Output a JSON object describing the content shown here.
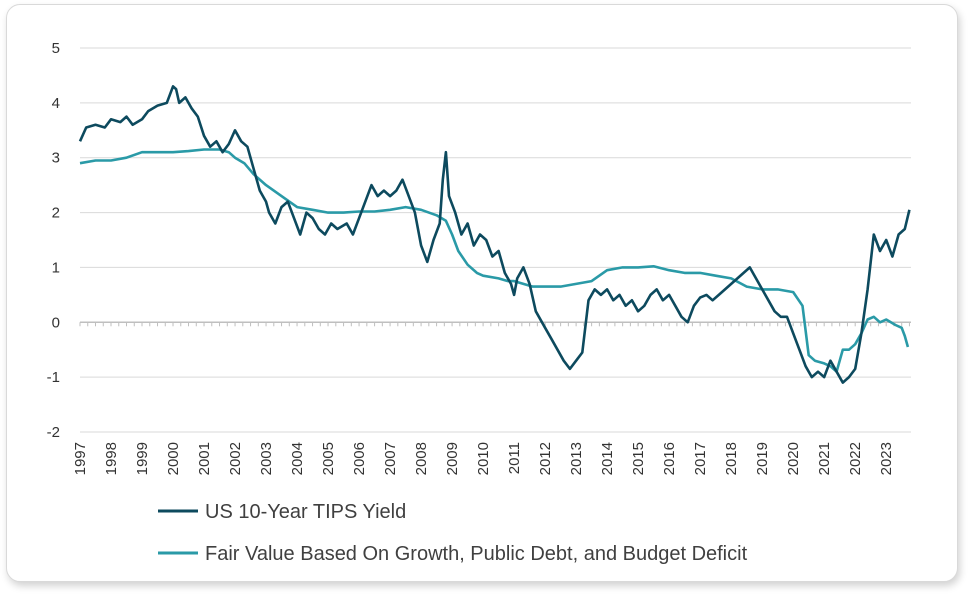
{
  "chart_data": {
    "type": "line",
    "title": "",
    "xlabel": "",
    "ylabel": "",
    "xlim": [
      1997,
      2023.8
    ],
    "ylim": [
      -2,
      5
    ],
    "y_ticks": [
      "5",
      "4",
      "3",
      "2",
      "1",
      "0",
      "-1",
      "-2"
    ],
    "x_ticks": [
      "1997",
      "1998",
      "1999",
      "2000",
      "2001",
      "2002",
      "2003",
      "2004",
      "2005",
      "2006",
      "2007",
      "2008",
      "2009",
      "2010",
      "2011",
      "2012",
      "2013",
      "2014",
      "2015",
      "2016",
      "2017",
      "2018",
      "2019",
      "2020",
      "2021",
      "2022",
      "2023"
    ],
    "grid": "horizontal",
    "legend_position": "bottom-left",
    "series": [
      {
        "name": "US 10-Year TIPS Yield",
        "color": "#0d4a5e",
        "points": [
          [
            1997.0,
            3.3
          ],
          [
            1997.2,
            3.55
          ],
          [
            1997.5,
            3.6
          ],
          [
            1997.8,
            3.55
          ],
          [
            1998.0,
            3.7
          ],
          [
            1998.3,
            3.65
          ],
          [
            1998.5,
            3.75
          ],
          [
            1998.7,
            3.6
          ],
          [
            1999.0,
            3.7
          ],
          [
            1999.2,
            3.85
          ],
          [
            1999.5,
            3.95
          ],
          [
            1999.8,
            4.0
          ],
          [
            2000.0,
            4.3
          ],
          [
            2000.1,
            4.25
          ],
          [
            2000.2,
            4.0
          ],
          [
            2000.4,
            4.1
          ],
          [
            2000.6,
            3.9
          ],
          [
            2000.8,
            3.75
          ],
          [
            2001.0,
            3.4
          ],
          [
            2001.2,
            3.2
          ],
          [
            2001.4,
            3.3
          ],
          [
            2001.6,
            3.1
          ],
          [
            2001.8,
            3.25
          ],
          [
            2002.0,
            3.5
          ],
          [
            2002.2,
            3.3
          ],
          [
            2002.4,
            3.2
          ],
          [
            2002.6,
            2.8
          ],
          [
            2002.8,
            2.4
          ],
          [
            2003.0,
            2.2
          ],
          [
            2003.1,
            2.0
          ],
          [
            2003.3,
            1.8
          ],
          [
            2003.5,
            2.1
          ],
          [
            2003.7,
            2.2
          ],
          [
            2003.9,
            1.9
          ],
          [
            2004.1,
            1.6
          ],
          [
            2004.3,
            2.0
          ],
          [
            2004.5,
            1.9
          ],
          [
            2004.7,
            1.7
          ],
          [
            2004.9,
            1.6
          ],
          [
            2005.1,
            1.8
          ],
          [
            2005.3,
            1.7
          ],
          [
            2005.6,
            1.8
          ],
          [
            2005.8,
            1.6
          ],
          [
            2006.0,
            1.9
          ],
          [
            2006.2,
            2.2
          ],
          [
            2006.4,
            2.5
          ],
          [
            2006.6,
            2.3
          ],
          [
            2006.8,
            2.4
          ],
          [
            2007.0,
            2.3
          ],
          [
            2007.2,
            2.4
          ],
          [
            2007.4,
            2.6
          ],
          [
            2007.6,
            2.3
          ],
          [
            2007.8,
            2.0
          ],
          [
            2008.0,
            1.4
          ],
          [
            2008.2,
            1.1
          ],
          [
            2008.4,
            1.5
          ],
          [
            2008.6,
            1.8
          ],
          [
            2008.7,
            2.6
          ],
          [
            2008.8,
            3.1
          ],
          [
            2008.9,
            2.3
          ],
          [
            2009.1,
            2.0
          ],
          [
            2009.3,
            1.6
          ],
          [
            2009.5,
            1.8
          ],
          [
            2009.7,
            1.4
          ],
          [
            2009.9,
            1.6
          ],
          [
            2010.1,
            1.5
          ],
          [
            2010.3,
            1.2
          ],
          [
            2010.5,
            1.3
          ],
          [
            2010.7,
            0.9
          ],
          [
            2010.9,
            0.7
          ],
          [
            2011.0,
            0.5
          ],
          [
            2011.1,
            0.8
          ],
          [
            2011.3,
            1.0
          ],
          [
            2011.5,
            0.7
          ],
          [
            2011.7,
            0.2
          ],
          [
            2011.9,
            0.0
          ],
          [
            2012.0,
            -0.1
          ],
          [
            2012.2,
            -0.3
          ],
          [
            2012.4,
            -0.5
          ],
          [
            2012.6,
            -0.7
          ],
          [
            2012.8,
            -0.85
          ],
          [
            2013.0,
            -0.7
          ],
          [
            2013.2,
            -0.55
          ],
          [
            2013.4,
            0.4
          ],
          [
            2013.6,
            0.6
          ],
          [
            2013.8,
            0.5
          ],
          [
            2014.0,
            0.6
          ],
          [
            2014.2,
            0.4
          ],
          [
            2014.4,
            0.5
          ],
          [
            2014.6,
            0.3
          ],
          [
            2014.8,
            0.4
          ],
          [
            2015.0,
            0.2
          ],
          [
            2015.2,
            0.3
          ],
          [
            2015.4,
            0.5
          ],
          [
            2015.6,
            0.6
          ],
          [
            2015.8,
            0.4
          ],
          [
            2016.0,
            0.5
          ],
          [
            2016.2,
            0.3
          ],
          [
            2016.4,
            0.1
          ],
          [
            2016.6,
            0.0
          ],
          [
            2016.8,
            0.3
          ],
          [
            2017.0,
            0.45
          ],
          [
            2017.2,
            0.5
          ],
          [
            2017.4,
            0.4
          ],
          [
            2017.6,
            0.5
          ],
          [
            2017.8,
            0.6
          ],
          [
            2018.0,
            0.7
          ],
          [
            2018.2,
            0.8
          ],
          [
            2018.4,
            0.9
          ],
          [
            2018.6,
            1.0
          ],
          [
            2018.8,
            0.8
          ],
          [
            2019.0,
            0.6
          ],
          [
            2019.2,
            0.4
          ],
          [
            2019.4,
            0.2
          ],
          [
            2019.6,
            0.1
          ],
          [
            2019.8,
            0.1
          ],
          [
            2020.0,
            -0.2
          ],
          [
            2020.2,
            -0.5
          ],
          [
            2020.4,
            -0.8
          ],
          [
            2020.6,
            -1.0
          ],
          [
            2020.8,
            -0.9
          ],
          [
            2021.0,
            -1.0
          ],
          [
            2021.2,
            -0.7
          ],
          [
            2021.4,
            -0.9
          ],
          [
            2021.6,
            -1.1
          ],
          [
            2021.8,
            -1.0
          ],
          [
            2022.0,
            -0.85
          ],
          [
            2022.2,
            -0.2
          ],
          [
            2022.4,
            0.6
          ],
          [
            2022.6,
            1.6
          ],
          [
            2022.8,
            1.3
          ],
          [
            2023.0,
            1.5
          ],
          [
            2023.2,
            1.2
          ],
          [
            2023.4,
            1.6
          ],
          [
            2023.6,
            1.7
          ],
          [
            2023.75,
            2.05
          ]
        ]
      },
      {
        "name": "Fair Value Based On Growth, Public Debt, and Budget Deficit",
        "color": "#2a9aa7",
        "points": [
          [
            1997.0,
            2.9
          ],
          [
            1997.5,
            2.95
          ],
          [
            1998.0,
            2.95
          ],
          [
            1998.5,
            3.0
          ],
          [
            1999.0,
            3.1
          ],
          [
            1999.5,
            3.1
          ],
          [
            2000.0,
            3.1
          ],
          [
            2000.5,
            3.12
          ],
          [
            2001.0,
            3.15
          ],
          [
            2001.5,
            3.15
          ],
          [
            2001.8,
            3.1
          ],
          [
            2002.0,
            3.0
          ],
          [
            2002.3,
            2.9
          ],
          [
            2002.6,
            2.7
          ],
          [
            2003.0,
            2.5
          ],
          [
            2003.5,
            2.3
          ],
          [
            2004.0,
            2.1
          ],
          [
            2004.5,
            2.05
          ],
          [
            2005.0,
            2.0
          ],
          [
            2005.5,
            2.0
          ],
          [
            2006.0,
            2.02
          ],
          [
            2006.5,
            2.02
          ],
          [
            2007.0,
            2.05
          ],
          [
            2007.5,
            2.1
          ],
          [
            2008.0,
            2.05
          ],
          [
            2008.5,
            1.95
          ],
          [
            2008.8,
            1.85
          ],
          [
            2009.0,
            1.6
          ],
          [
            2009.2,
            1.3
          ],
          [
            2009.5,
            1.05
          ],
          [
            2009.8,
            0.9
          ],
          [
            2010.0,
            0.85
          ],
          [
            2010.5,
            0.8
          ],
          [
            2010.8,
            0.75
          ],
          [
            2011.0,
            0.75
          ],
          [
            2011.3,
            0.7
          ],
          [
            2011.6,
            0.65
          ],
          [
            2012.0,
            0.65
          ],
          [
            2012.5,
            0.65
          ],
          [
            2013.0,
            0.7
          ],
          [
            2013.5,
            0.75
          ],
          [
            2014.0,
            0.95
          ],
          [
            2014.5,
            1.0
          ],
          [
            2015.0,
            1.0
          ],
          [
            2015.5,
            1.02
          ],
          [
            2016.0,
            0.95
          ],
          [
            2016.5,
            0.9
          ],
          [
            2017.0,
            0.9
          ],
          [
            2017.5,
            0.85
          ],
          [
            2018.0,
            0.8
          ],
          [
            2018.5,
            0.65
          ],
          [
            2019.0,
            0.6
          ],
          [
            2019.5,
            0.6
          ],
          [
            2020.0,
            0.55
          ],
          [
            2020.3,
            0.3
          ],
          [
            2020.5,
            -0.6
          ],
          [
            2020.7,
            -0.7
          ],
          [
            2021.0,
            -0.75
          ],
          [
            2021.2,
            -0.8
          ],
          [
            2021.4,
            -0.9
          ],
          [
            2021.6,
            -0.5
          ],
          [
            2021.8,
            -0.5
          ],
          [
            2022.0,
            -0.4
          ],
          [
            2022.2,
            -0.2
          ],
          [
            2022.4,
            0.05
          ],
          [
            2022.6,
            0.1
          ],
          [
            2022.8,
            0.0
          ],
          [
            2023.0,
            0.05
          ],
          [
            2023.3,
            -0.05
          ],
          [
            2023.5,
            -0.1
          ],
          [
            2023.6,
            -0.25
          ],
          [
            2023.7,
            -0.45
          ]
        ]
      }
    ]
  }
}
